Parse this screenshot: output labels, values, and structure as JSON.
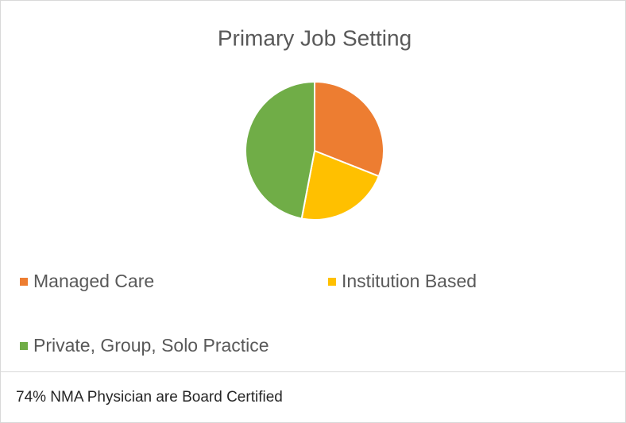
{
  "chart_data": {
    "type": "pie",
    "title": "Primary Job Setting",
    "categories": [
      "Managed Care",
      "Institution Based",
      "Private, Group, Solo Practice"
    ],
    "values": [
      31,
      22,
      47
    ],
    "colors": [
      "#ed7d31",
      "#ffc000",
      "#70ad47"
    ],
    "legend": "bottom"
  },
  "footer": "74% NMA Physician are Board Certified"
}
